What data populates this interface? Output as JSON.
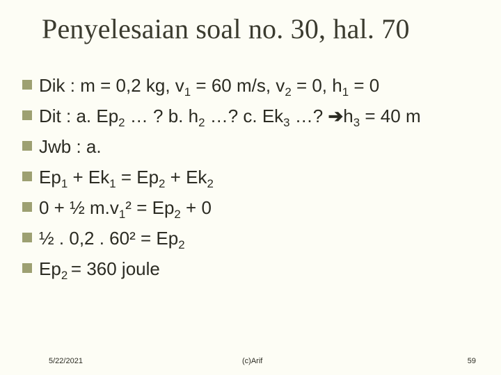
{
  "title": "Penyelesaian soal no. 30, hal. 70",
  "bullet_color": "#9da072",
  "title_color": "#3b3b2f",
  "text_color": "#2b2b22",
  "background": "#fdfdf5",
  "title_fontsize": 40,
  "body_fontsize": 26,
  "lines": [
    {
      "style": "arial",
      "segments": [
        {
          "t": "Dik : m = 0,2 kg, v"
        },
        {
          "t": "1",
          "sub": true
        },
        {
          "t": " = 60 m/s, v"
        },
        {
          "t": "2",
          "sub": true
        },
        {
          "t": " = 0, h"
        },
        {
          "t": "1",
          "sub": true
        },
        {
          "t": " = 0"
        }
      ]
    },
    {
      "style": "comic",
      "segments": [
        {
          "t": "Dit : a. Ep"
        },
        {
          "t": "2",
          "sub": true
        },
        {
          "t": " … ? b. h"
        },
        {
          "t": "2",
          "sub": true
        },
        {
          "t": " …?  c. Ek"
        },
        {
          "t": "3",
          "sub": true
        },
        {
          "t": " …? "
        },
        {
          "t": "➔",
          "arrow": true
        },
        {
          "t": "h"
        },
        {
          "t": "3",
          "sub": true
        },
        {
          "t": " = 40 m"
        }
      ]
    },
    {
      "style": "comic",
      "segments": [
        {
          "t": "Jwb : a."
        }
      ]
    },
    {
      "style": "comic",
      "segments": [
        {
          "t": "Ep"
        },
        {
          "t": "1",
          "sub": true
        },
        {
          "t": " + Ek"
        },
        {
          "t": "1",
          "sub": true
        },
        {
          "t": " = Ep"
        },
        {
          "t": "2",
          "sub": true
        },
        {
          "t": " + Ek"
        },
        {
          "t": "2",
          "sub": true
        }
      ]
    },
    {
      "style": "comic",
      "segments": [
        {
          "t": "0 + ½ m.v"
        },
        {
          "t": "1",
          "sub": true
        },
        {
          "t": "²",
          "sup": false
        },
        {
          "t": " = Ep"
        },
        {
          "t": "2",
          "sub": true
        },
        {
          "t": " + 0"
        }
      ]
    },
    {
      "style": "comic",
      "segments": [
        {
          "t": "½ . 0,2 . 60² = Ep"
        },
        {
          "t": "2",
          "sub": true
        }
      ]
    },
    {
      "style": "comic",
      "segments": [
        {
          "t": "Ep"
        },
        {
          "t": "2 ",
          "sub": true
        },
        {
          "t": "= 360 joule"
        }
      ]
    }
  ],
  "footer": {
    "date": "5/22/2021",
    "mid": "(c)Arif",
    "num": "59"
  }
}
